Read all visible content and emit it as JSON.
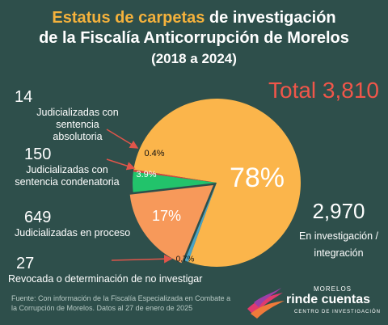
{
  "title": {
    "accent": "Estatus de carpetas",
    "rest": " de investigación",
    "line2": "de la Fiscalía Anticorrupción de Morelos",
    "line3": "(2018 a 2024)"
  },
  "total_label": "Total 3,810",
  "chart_data": {
    "type": "pie",
    "title": "Estatus de carpetas de investigación de la Fiscalía Anticorrupción de Morelos (2018 a 2024)",
    "total": 3810,
    "slices": [
      {
        "label": "En investigación / integración",
        "count": 2970,
        "percent_label": "78%",
        "value": 78.0,
        "color": "#fbb54b"
      },
      {
        "label": "Revocada o determinación de no investigar",
        "count": 27,
        "percent_label": "0.7%",
        "value": 0.7,
        "color": "#4ba3c3"
      },
      {
        "label": "Judicializadas en proceso",
        "count": 649,
        "percent_label": "17%",
        "value": 17.0,
        "color": "#f7995a"
      },
      {
        "label": "Judicializadas con sentencia condenatoria",
        "count": 150,
        "percent_label": "3.9%",
        "value": 3.9,
        "color": "#22c36b"
      },
      {
        "label": "Judicializadas con sentencia absolutoria",
        "count": 14,
        "percent_label": "0.4%",
        "value": 0.4,
        "color": "#d9473f"
      }
    ]
  },
  "callouts": {
    "absolutoria": {
      "count": "14",
      "text1": "Judicializadas con sentencia",
      "text2": "absolutoria"
    },
    "condenatoria": {
      "count": "150",
      "text1": "Judicializadas con",
      "text2": "sentencia condenatoria"
    },
    "proceso": {
      "count": "649",
      "text1": "Judicializadas en proceso"
    },
    "revocada": {
      "count": "27",
      "text1": "Revocada o determinación de no investigar"
    },
    "investigacion": {
      "count": "2,970",
      "text1": "En investigación /",
      "text2": "integración"
    }
  },
  "footer": "Fuente: Con información de la Fiscalía Especializada en Combate a la Corrupción de Morelos. Datos al 27 de enero de 2025",
  "logo": {
    "top": "MORELOS",
    "main": "rinde cuentas",
    "sub": "CENTRO DE INVESTIGACIÓN"
  },
  "colors": {
    "background": "#2e4f4b",
    "accent": "#f5b23c",
    "total": "#f0564a",
    "arrow": "#e0554a"
  }
}
